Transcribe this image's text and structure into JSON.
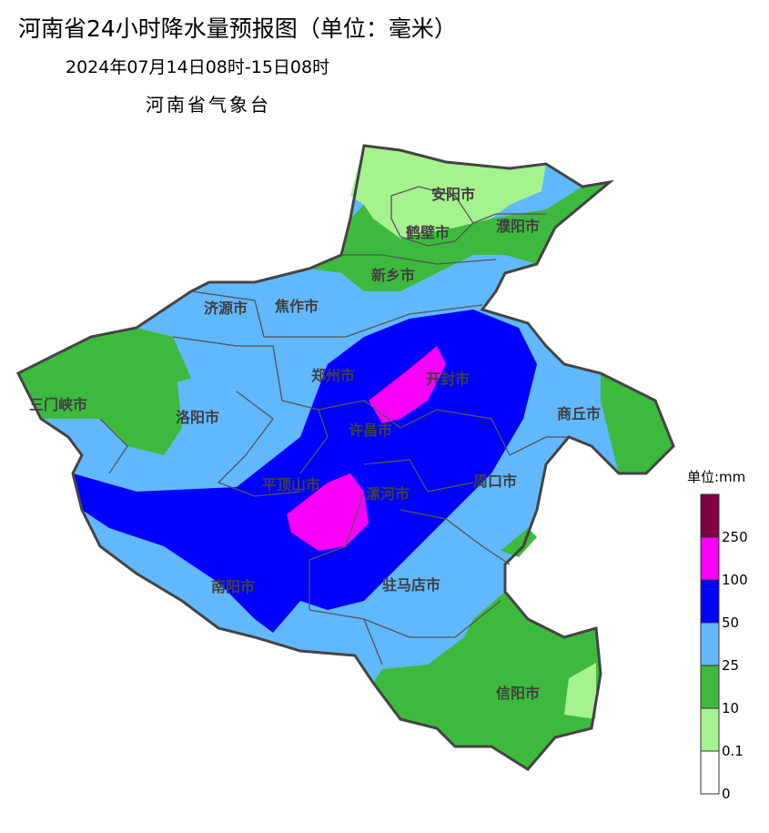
{
  "header": {
    "title": "河南省24小时降水量预报图（单位：毫米）",
    "subtitle": "2024年07月14日08时-15日08时",
    "agency": "河南省气象台"
  },
  "cities": [
    "安阳市",
    "鹤壁市",
    "濮阳市",
    "新乡市",
    "济源市",
    "焦作市",
    "郑州市",
    "开封市",
    "三门峡市",
    "洛阳市",
    "许昌市",
    "商丘市",
    "平顶山市",
    "漯河市",
    "周口市",
    "南阳市",
    "驻马店市",
    "信阳市"
  ],
  "legend": {
    "unit": "单位:mm",
    "levels": [
      {
        "label": "0",
        "color": "#ffffff"
      },
      {
        "label": "0.1",
        "color": "#a6f28f"
      },
      {
        "label": "10",
        "color": "#3dba3d"
      },
      {
        "label": "25",
        "color": "#61b8ff"
      },
      {
        "label": "50",
        "color": "#0000fe"
      },
      {
        "label": "100",
        "color": "#fa00fa"
      },
      {
        "label": "250",
        "color": "#800040"
      }
    ]
  }
}
